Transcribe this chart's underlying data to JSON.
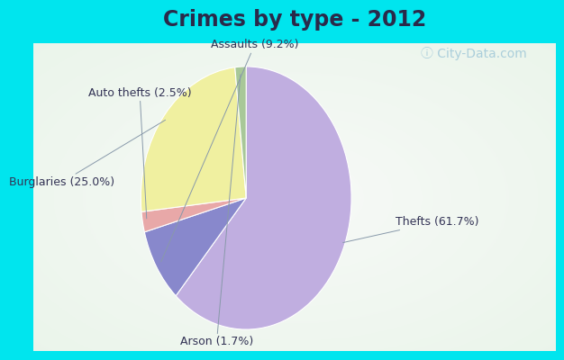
{
  "title": "Crimes by type - 2012",
  "title_fontsize": 17,
  "title_fontweight": "bold",
  "title_color": "#2a2a4a",
  "slices": [
    {
      "label": "Thefts (61.7%)",
      "value": 61.7,
      "color": "#c0aee0"
    },
    {
      "label": "Assaults (9.2%)",
      "value": 9.2,
      "color": "#8888cc"
    },
    {
      "label": "Auto thefts (2.5%)",
      "value": 2.5,
      "color": "#e8a8a8"
    },
    {
      "label": "Burglaries (25.0%)",
      "value": 25.0,
      "color": "#f0f0a0"
    },
    {
      "label": "Arson (1.7%)",
      "value": 1.7,
      "color": "#a8c898"
    }
  ],
  "border_color": "#00e5ee",
  "border_width": 10,
  "label_fontsize": 9,
  "label_color": "#333355",
  "watermark_color": "#a0c8d8",
  "watermark_fontsize": 10
}
